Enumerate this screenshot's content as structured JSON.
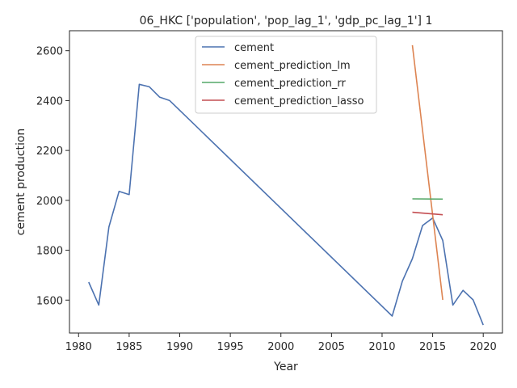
{
  "chart_data": {
    "type": "line",
    "title": "06_HKC ['population', 'pop_lag_1', 'gdp_pc_lag_1'] 1",
    "xlabel": "Year",
    "ylabel": "cement production",
    "xlim": [
      1979.1,
      2021.9
    ],
    "ylim": [
      1468,
      2680
    ],
    "xticks": [
      1980,
      1985,
      1990,
      1995,
      2000,
      2005,
      2010,
      2015,
      2020
    ],
    "yticks": [
      1600,
      1800,
      2000,
      2200,
      2400,
      2600
    ],
    "grid": false,
    "legend_position": "upper center",
    "series": [
      {
        "name": "cement",
        "color": "#4c72b0",
        "x": [
          1981,
          1982,
          1983,
          1984,
          1985,
          1986,
          1987,
          1988,
          1989,
          2011,
          2012,
          2013,
          2014,
          2015,
          2016,
          2017,
          2018,
          2019,
          2020
        ],
        "y": [
          1672,
          1580,
          1893,
          2036,
          2023,
          2465,
          2455,
          2414,
          2400,
          1536,
          1675,
          1766,
          1899,
          1929,
          1839,
          1580,
          1639,
          1601,
          1500
        ]
      },
      {
        "name": "cement_prediction_lm",
        "color": "#dd8452",
        "x": [
          2013,
          2016
        ],
        "y": [
          2622,
          1601
        ]
      },
      {
        "name": "cement_prediction_rr",
        "color": "#55a868",
        "x": [
          2013,
          2016
        ],
        "y": [
          2006,
          2005
        ]
      },
      {
        "name": "cement_prediction_lasso",
        "color": "#c44e52",
        "x": [
          2013,
          2016
        ],
        "y": [
          1952,
          1942
        ]
      }
    ]
  }
}
